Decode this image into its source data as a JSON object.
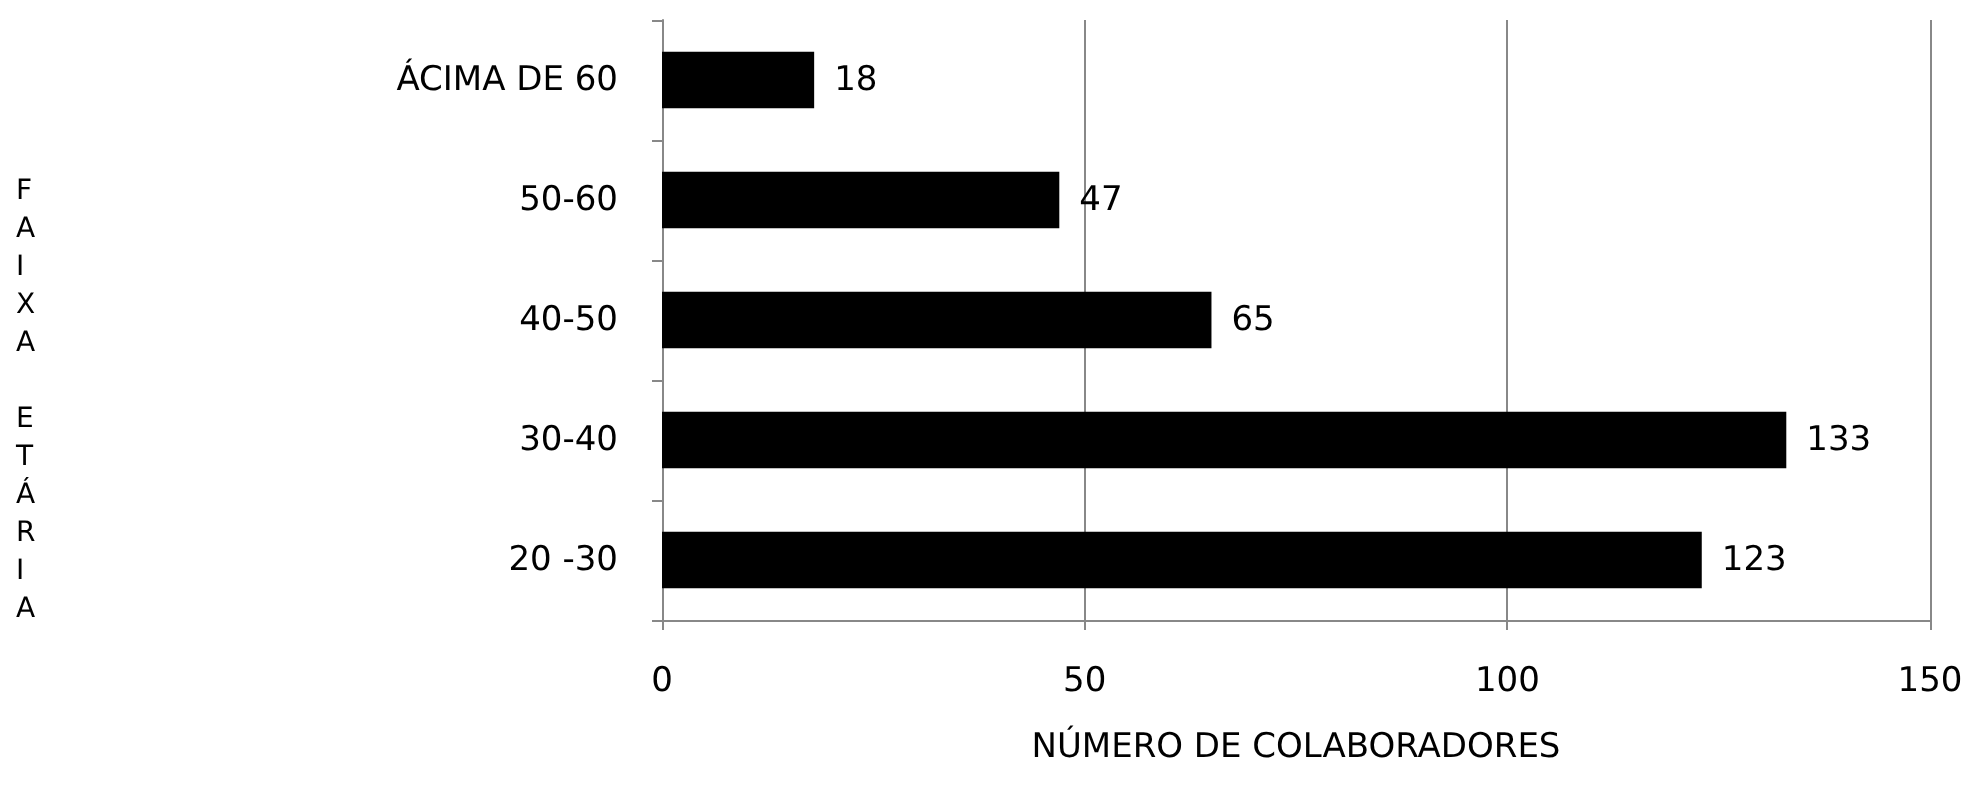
{
  "chart_data": {
    "type": "bar",
    "orientation": "horizontal",
    "categories": [
      "ÁCIMA DE 60",
      "50-60",
      "40-50",
      "30-40",
      "20 -30"
    ],
    "values": [
      18,
      47,
      65,
      133,
      123
    ],
    "color": "#000000",
    "xlim": [
      0,
      150
    ],
    "xticks": [
      0,
      50,
      100,
      150
    ],
    "xlabel": "NÚMERO DE COLABORADORES",
    "ylabel": "FAIXA ETÁRIA",
    "grid": "x",
    "data_labels": true
  }
}
